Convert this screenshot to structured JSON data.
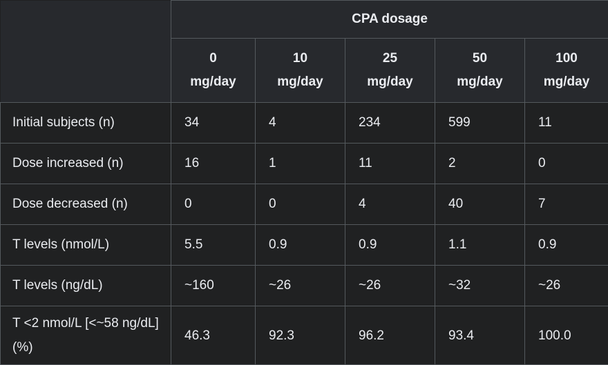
{
  "header": {
    "group_label": "CPA dosage",
    "doses": [
      {
        "amount": "0",
        "unit": "mg/day"
      },
      {
        "amount": "10",
        "unit": "mg/day"
      },
      {
        "amount": "25",
        "unit": "mg/day"
      },
      {
        "amount": "50",
        "unit": "mg/day"
      },
      {
        "amount": "100",
        "unit": "mg/day"
      }
    ]
  },
  "rows": [
    {
      "label": "Initial subjects (n)",
      "values": [
        "34",
        "4",
        "234",
        "599",
        "11"
      ]
    },
    {
      "label": "Dose increased (n)",
      "values": [
        "16",
        "1",
        "11",
        "2",
        "0"
      ]
    },
    {
      "label": "Dose decreased (n)",
      "values": [
        "0",
        "0",
        "4",
        "40",
        "7"
      ]
    },
    {
      "label": "T levels (nmol/L)",
      "values": [
        "5.5",
        "0.9",
        "0.9",
        "1.1",
        "0.9"
      ]
    },
    {
      "label": "T levels (ng/dL)",
      "values": [
        "~160",
        "~26",
        "~26",
        "~32",
        "~26"
      ]
    },
    {
      "label": "T <2 nmol/L [<~58 ng/dL] (%)",
      "values": [
        "46.3",
        "92.3",
        "96.2",
        "93.4",
        "100.0"
      ]
    }
  ],
  "colors": {
    "background": "#202122",
    "header_background": "#27292d",
    "border": "#54595d",
    "text": "#eaecf0"
  }
}
